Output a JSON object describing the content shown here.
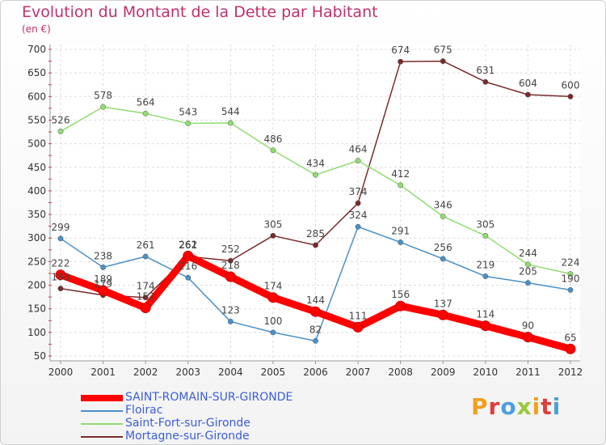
{
  "title": "Evolution du Montant de la Dette par Habitant",
  "subtitle": "(en €)",
  "logo": {
    "text": "Proxiti",
    "colors": [
      "#f0a020",
      "#e03c3c",
      "#4aa0dc",
      "#9ac83c",
      "#f0a020",
      "#e03c3c",
      "#4aa0dc"
    ]
  },
  "chart_data": {
    "type": "line",
    "x": [
      2000,
      2001,
      2002,
      2003,
      2004,
      2005,
      2006,
      2007,
      2008,
      2009,
      2010,
      2011,
      2012
    ],
    "ylim": [
      50,
      700
    ],
    "yticks": [
      50,
      100,
      150,
      200,
      250,
      300,
      350,
      400,
      450,
      500,
      550,
      600,
      650,
      700
    ],
    "grid": true,
    "legend_position": "bottom-left",
    "series": [
      {
        "name": "SAINT-ROMAIN-SUR-GIRONDE",
        "color": "#ff0000",
        "values": [
          222,
          189,
          152,
          262,
          218,
          174,
          144,
          111,
          156,
          137,
          114,
          90,
          65
        ]
      },
      {
        "name": "Floirac",
        "color": "#4a90c8",
        "values": [
          299,
          238,
          261,
          216,
          123,
          100,
          82,
          324,
          291,
          256,
          219,
          205,
          190
        ]
      },
      {
        "name": "Saint-Fort-sur-Gironde",
        "color": "#90dd70",
        "values": [
          526,
          578,
          564,
          543,
          544,
          486,
          434,
          464,
          412,
          346,
          305,
          244,
          224
        ]
      },
      {
        "name": "Mortagne-sur-Gironde",
        "color": "#7a2a2a",
        "values": [
          193,
          179,
          174,
          261,
          252,
          305,
          285,
          374,
          674,
          675,
          631,
          604,
          600
        ]
      }
    ],
    "data_labels": [
      [
        "222",
        "189",
        "152",
        "262",
        "218",
        "174",
        "144",
        "111",
        "156",
        "137",
        "114",
        "90",
        "65"
      ],
      [
        "299",
        "238",
        "261",
        "216",
        "123",
        "100",
        "82",
        "324",
        "291",
        "256",
        "219",
        "205",
        "190"
      ],
      [
        "526",
        "578",
        "564",
        "543",
        "544",
        "486",
        "434",
        "464",
        "412",
        "346",
        "305",
        "244",
        "224"
      ],
      [
        "193",
        "179",
        "174",
        "261",
        "252",
        "305",
        "285",
        "374",
        "674",
        "675",
        "631",
        "604",
        "600"
      ]
    ]
  }
}
